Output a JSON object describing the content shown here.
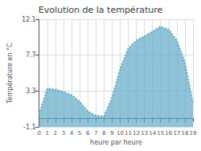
{
  "chart_data": {
    "type": "area",
    "title": "Evolution de la température",
    "xlabel": "heure par heure",
    "ylabel": "Température en °C",
    "x": [
      0,
      1,
      2,
      3,
      4,
      5,
      6,
      7,
      8,
      9,
      10,
      11,
      12,
      13,
      14,
      15,
      16,
      17,
      18,
      19
    ],
    "values": [
      0.4,
      3.6,
      3.5,
      3.2,
      2.8,
      2.0,
      0.8,
      0.3,
      0.15,
      2.5,
      6.0,
      8.5,
      9.5,
      10.0,
      10.6,
      11.2,
      10.8,
      9.5,
      6.8,
      1.8
    ],
    "color": "#60aac8",
    "line_style": "dotted",
    "xlim": [
      0,
      19
    ],
    "xticks": [
      0,
      1,
      2,
      3,
      4,
      5,
      6,
      7,
      8,
      9,
      10,
      11,
      12,
      13,
      14,
      15,
      16,
      17,
      18,
      19
    ],
    "ylim": [
      -1.1,
      12.1
    ],
    "yticks": [
      -1.1,
      3.3,
      7.7,
      12.1
    ],
    "grid": true
  }
}
